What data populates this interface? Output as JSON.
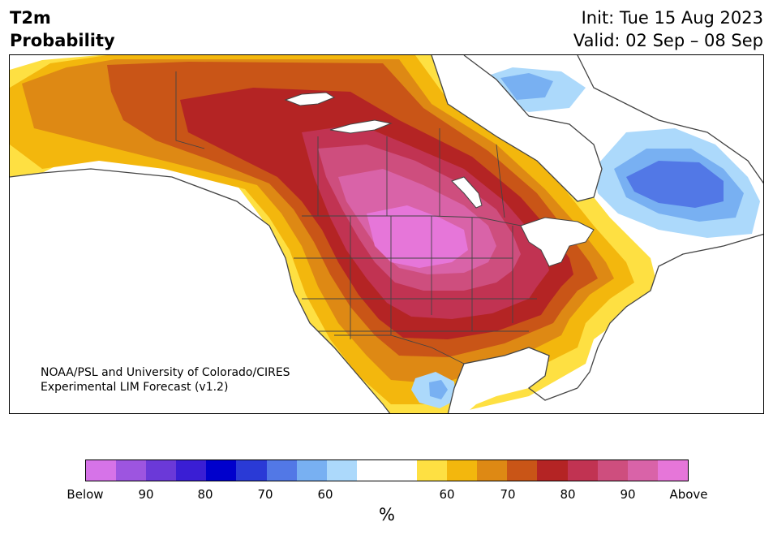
{
  "title": {
    "line1": "T2m",
    "line2": "Probability"
  },
  "dates": {
    "init": "Init: Tue 15 Aug 2023",
    "valid": "Valid: 02 Sep – 08 Sep"
  },
  "credit": {
    "line1": "NOAA/PSL and University of Colorado/CIRES",
    "line2": "Experimental LIM Forecast (v1.2)"
  },
  "colorbar": {
    "colors": [
      "#d673e8",
      "#9d55e0",
      "#6b39d8",
      "#3a1ed4",
      "#0000cc",
      "#2a3ad6",
      "#5278e6",
      "#78b0f2",
      "#acd9fb",
      "#ffffff",
      "#ffffff",
      "#fee042",
      "#f3b70d",
      "#de8914",
      "#c95517",
      "#b42424",
      "#c13352",
      "#ce4e7e",
      "#d963a8",
      "#e676d9"
    ],
    "labels": [
      "Below",
      "90",
      "80",
      "70",
      "60",
      "60",
      "70",
      "80",
      "90",
      "Above"
    ],
    "unit": "%"
  },
  "palette": {
    "above60": "#fee042",
    "above65": "#f3b70d",
    "above70": "#de8914",
    "above75": "#c95517",
    "above80": "#b42424",
    "above85": "#c13352",
    "above90": "#ce4e7e",
    "above95": "#d963a8",
    "above100": "#e676d9",
    "below60": "#acd9fb",
    "below65": "#78b0f2",
    "below70": "#5278e6"
  }
}
